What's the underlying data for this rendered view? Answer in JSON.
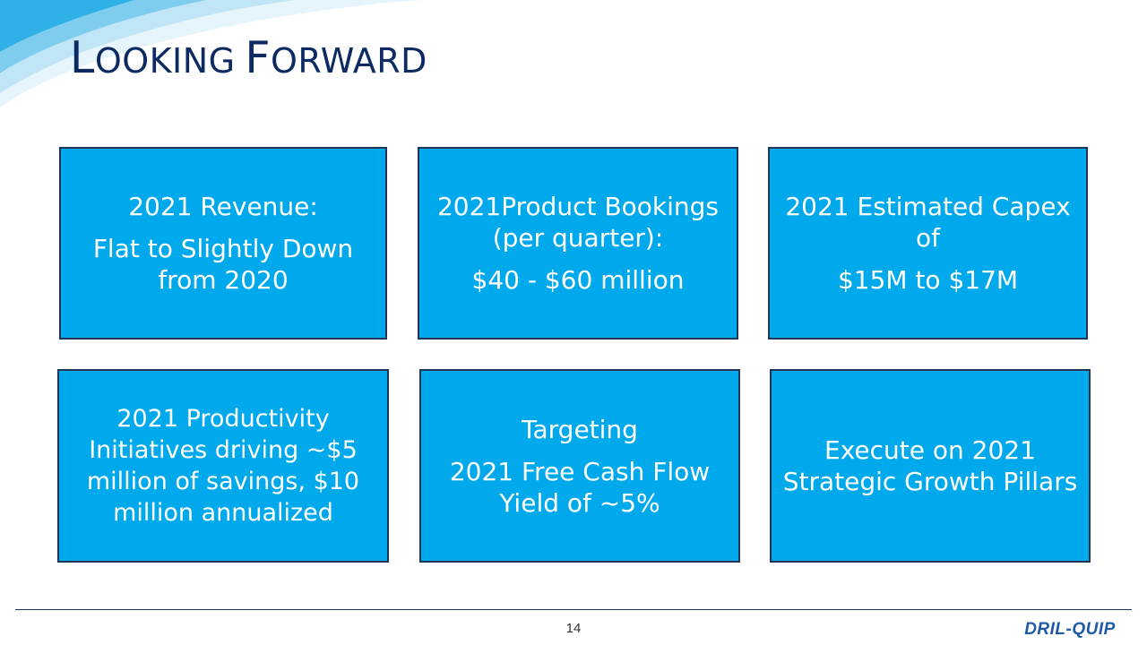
{
  "slide": {
    "title_first_cap": "L",
    "title_first_rest": "OOKING",
    "title_second_cap": "F",
    "title_second_rest": "ORWARD",
    "page_number": "14"
  },
  "cards": [
    {
      "lines": [
        "2021 Revenue:",
        "Flat to Slightly Down from 2020"
      ]
    },
    {
      "lines": [
        "2021Product Bookings (per quarter):",
        "$40 - $60 million"
      ]
    },
    {
      "lines": [
        "2021 Estimated Capex of",
        "$15M to $17M"
      ]
    },
    {
      "lines": [
        "2021 Productivity Initiatives driving ~$5 million of savings, $10 million annualized"
      ]
    },
    {
      "lines": [
        "Targeting",
        "2021 Free Cash Flow Yield of ~5%"
      ]
    },
    {
      "lines": [
        "Execute on 2021 Strategic Growth Pillars"
      ]
    }
  ],
  "logo": {
    "text": "DRIL-QUIP"
  },
  "colors": {
    "card_fill": "#00a8ec",
    "card_border": "#1e3556",
    "title": "#0d2a63",
    "logo": "#1e5aa8"
  }
}
